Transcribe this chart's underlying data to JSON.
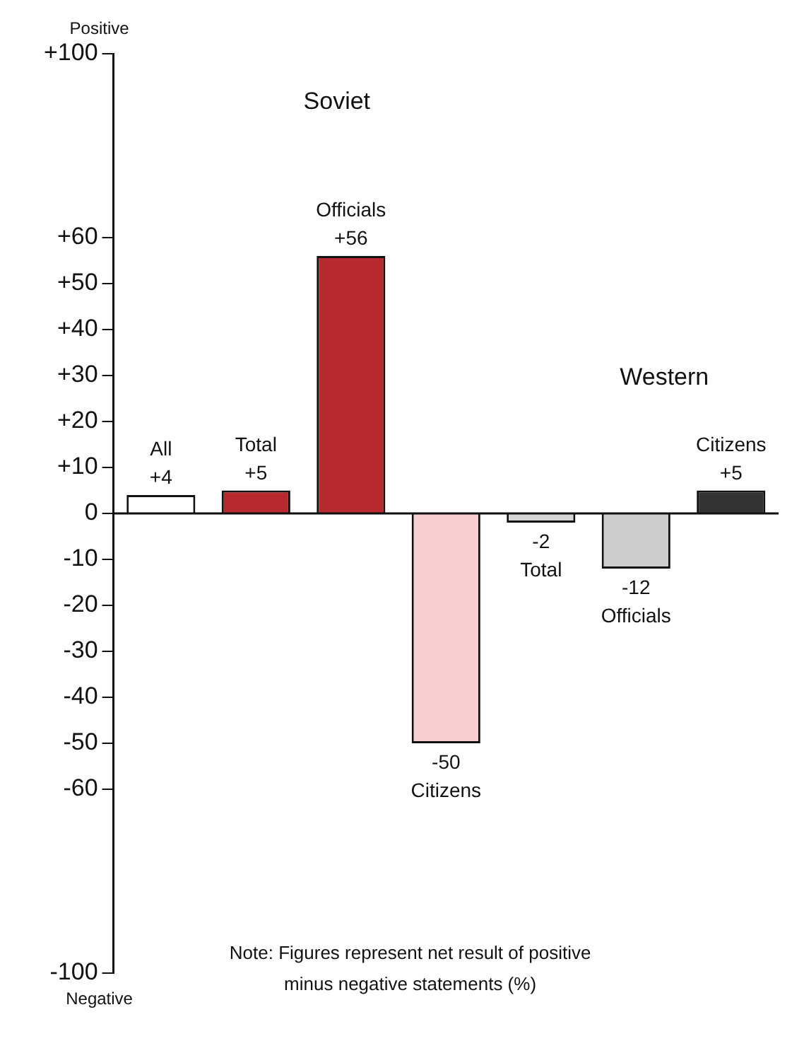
{
  "chart_data": {
    "type": "bar",
    "categories": [
      null,
      null,
      null,
      null,
      null,
      null,
      null
    ],
    "ref_lines": [
      {
        "axis": "y",
        "value": 0,
        "color": "#111111"
      }
    ],
    "values": [
      4,
      5,
      56,
      -50,
      -2,
      -12,
      5
    ],
    "colors": [
      "#ffffff",
      "#b8282f",
      "#b8282f",
      "#f6cdd0",
      "#d6d6d6",
      "#cdcdcd",
      "#333333"
    ],
    "value_labels": [
      "All\n+4",
      "Total\n+5",
      "Officials\n+56",
      "-50\nCitizens",
      "-2\nTotal",
      "-12\nOfficials",
      "Citizens\n+5"
    ],
    "ylim": [
      -100,
      100
    ],
    "yticks": [
      {
        "value": 100,
        "label": "+100"
      },
      {
        "value": 60,
        "label": "+60"
      },
      {
        "value": 50,
        "label": "+50"
      },
      {
        "value": 40,
        "label": "+40"
      },
      {
        "value": 30,
        "label": "+30"
      },
      {
        "value": 20,
        "label": "+20"
      },
      {
        "value": 10,
        "label": "+10"
      },
      0,
      -10,
      -20,
      -30,
      -40,
      -50,
      -60,
      -100
    ],
    "grid": false,
    "tick_labels": "y",
    "annotations": [
      "Soviet",
      "Western",
      "Positive",
      "Negative",
      "Note: Figures represent net result of positive minus negative statements (%)"
    ]
  }
}
